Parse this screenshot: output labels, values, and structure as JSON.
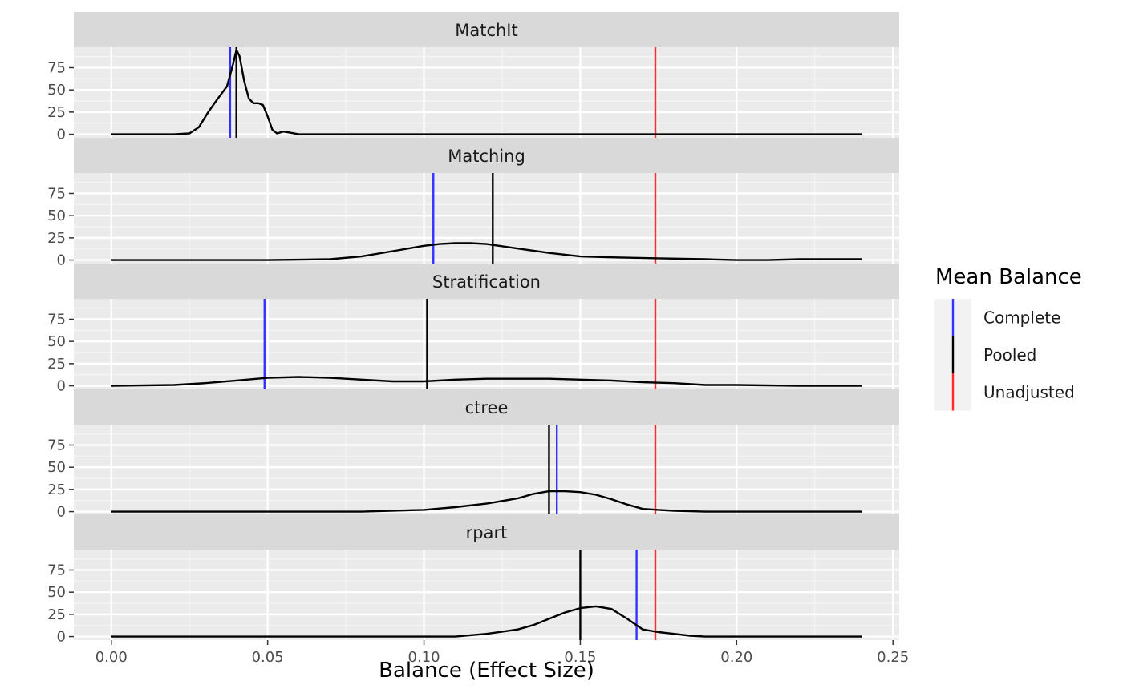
{
  "chart_data": {
    "type": "line",
    "xlabel": "Balance (Effect Size)",
    "ylabel": "",
    "xlim": [
      -0.012,
      0.252
    ],
    "ylim": [
      -4,
      98
    ],
    "x_ticks": [
      "0.00",
      "0.05",
      "0.10",
      "0.15",
      "0.20",
      "0.25"
    ],
    "x_tick_values": [
      0,
      0.05,
      0.1,
      0.15,
      0.2,
      0.25
    ],
    "y_ticks": [
      "0",
      "25",
      "50",
      "75"
    ],
    "y_tick_values": [
      0,
      25,
      50,
      75
    ],
    "grid": true,
    "legend": {
      "title": "Mean Balance",
      "position": "right",
      "entries": [
        {
          "label": "Complete",
          "color": "#3333ff"
        },
        {
          "label": "Pooled",
          "color": "#000000"
        },
        {
          "label": "Unadjusted",
          "color": "#ff2a2a"
        }
      ]
    },
    "panels": [
      {
        "name": "MatchIt",
        "vlines": {
          "Complete": 0.038,
          "Pooled": 0.04,
          "Unadjusted": 0.174
        },
        "density": {
          "x": [
            0,
            0.02,
            0.025,
            0.028,
            0.031,
            0.034,
            0.037,
            0.039,
            0.04,
            0.041,
            0.0425,
            0.044,
            0.0455,
            0.047,
            0.0485,
            0.05,
            0.0515,
            0.053,
            0.055,
            0.057,
            0.06,
            0.24
          ],
          "y": [
            0,
            0,
            1,
            8,
            25,
            40,
            54,
            80,
            95,
            88,
            60,
            40,
            35,
            35,
            33,
            20,
            5,
            1,
            3,
            2,
            0,
            0
          ]
        }
      },
      {
        "name": "Matching",
        "vlines": {
          "Complete": 0.103,
          "Pooled": 0.122,
          "Unadjusted": 0.174
        },
        "density": {
          "x": [
            0,
            0.05,
            0.07,
            0.08,
            0.09,
            0.1,
            0.105,
            0.11,
            0.115,
            0.12,
            0.13,
            0.14,
            0.15,
            0.16,
            0.175,
            0.19,
            0.2,
            0.21,
            0.22,
            0.23,
            0.24
          ],
          "y": [
            0,
            0,
            1,
            4,
            10,
            16,
            18,
            19,
            19,
            18,
            13,
            8,
            4,
            3,
            2,
            1,
            0,
            0,
            1,
            1,
            1
          ]
        }
      },
      {
        "name": "Stratification",
        "vlines": {
          "Complete": 0.049,
          "Pooled": 0.101,
          "Unadjusted": 0.174
        },
        "density": {
          "x": [
            0,
            0.02,
            0.03,
            0.04,
            0.05,
            0.06,
            0.07,
            0.08,
            0.09,
            0.1,
            0.11,
            0.12,
            0.13,
            0.14,
            0.15,
            0.16,
            0.17,
            0.18,
            0.19,
            0.2,
            0.22,
            0.24
          ],
          "y": [
            0,
            1,
            3,
            6,
            9,
            10,
            9,
            7,
            5,
            5,
            7,
            8,
            8,
            8,
            7,
            6,
            4,
            3,
            1,
            1,
            0,
            0
          ]
        }
      },
      {
        "name": "ctree",
        "vlines": {
          "Complete": 0.1425,
          "Pooled": 0.14,
          "Unadjusted": 0.174
        },
        "density": {
          "x": [
            0,
            0.08,
            0.1,
            0.11,
            0.12,
            0.13,
            0.135,
            0.14,
            0.145,
            0.15,
            0.155,
            0.16,
            0.165,
            0.17,
            0.175,
            0.18,
            0.19,
            0.2,
            0.24
          ],
          "y": [
            0,
            0,
            2,
            5,
            9,
            15,
            20,
            23,
            23,
            22,
            19,
            14,
            8,
            3,
            2,
            1,
            0,
            0,
            0
          ]
        }
      },
      {
        "name": "rpart",
        "vlines": {
          "Complete": 0.168,
          "Pooled": 0.15,
          "Unadjusted": 0.174
        },
        "density": {
          "x": [
            0,
            0.11,
            0.12,
            0.13,
            0.135,
            0.14,
            0.145,
            0.15,
            0.155,
            0.16,
            0.165,
            0.17,
            0.175,
            0.18,
            0.185,
            0.19,
            0.24
          ],
          "y": [
            0,
            0,
            3,
            8,
            13,
            20,
            27,
            32,
            34,
            31,
            20,
            8,
            5,
            3,
            1,
            0,
            0
          ]
        }
      }
    ]
  }
}
